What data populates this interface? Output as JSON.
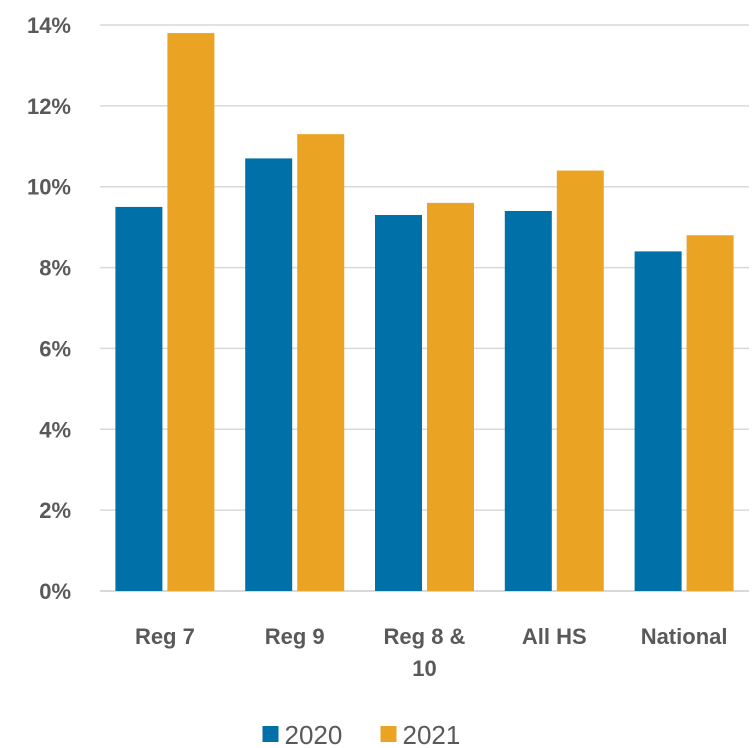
{
  "chart_data": {
    "type": "bar",
    "categories": [
      [
        "Reg 7"
      ],
      [
        "Reg 9"
      ],
      [
        "Reg 8 &",
        "10"
      ],
      [
        "All HS"
      ],
      [
        "National"
      ]
    ],
    "series": [
      {
        "name": "2020",
        "color": "#0070A8",
        "values": [
          9.5,
          10.7,
          9.3,
          9.4,
          8.4
        ]
      },
      {
        "name": "2021",
        "color": "#EBA324",
        "values": [
          13.8,
          11.3,
          9.6,
          10.4,
          8.8
        ]
      }
    ],
    "ylim": [
      0,
      14
    ],
    "yticks": [
      0,
      2,
      4,
      6,
      8,
      10,
      12,
      14
    ],
    "ytick_labels": [
      "0%",
      "2%",
      "4%",
      "6%",
      "8%",
      "10%",
      "12%",
      "14%"
    ],
    "grid": true,
    "legend_position": "bottom",
    "title": "",
    "xlabel": "",
    "ylabel": ""
  }
}
